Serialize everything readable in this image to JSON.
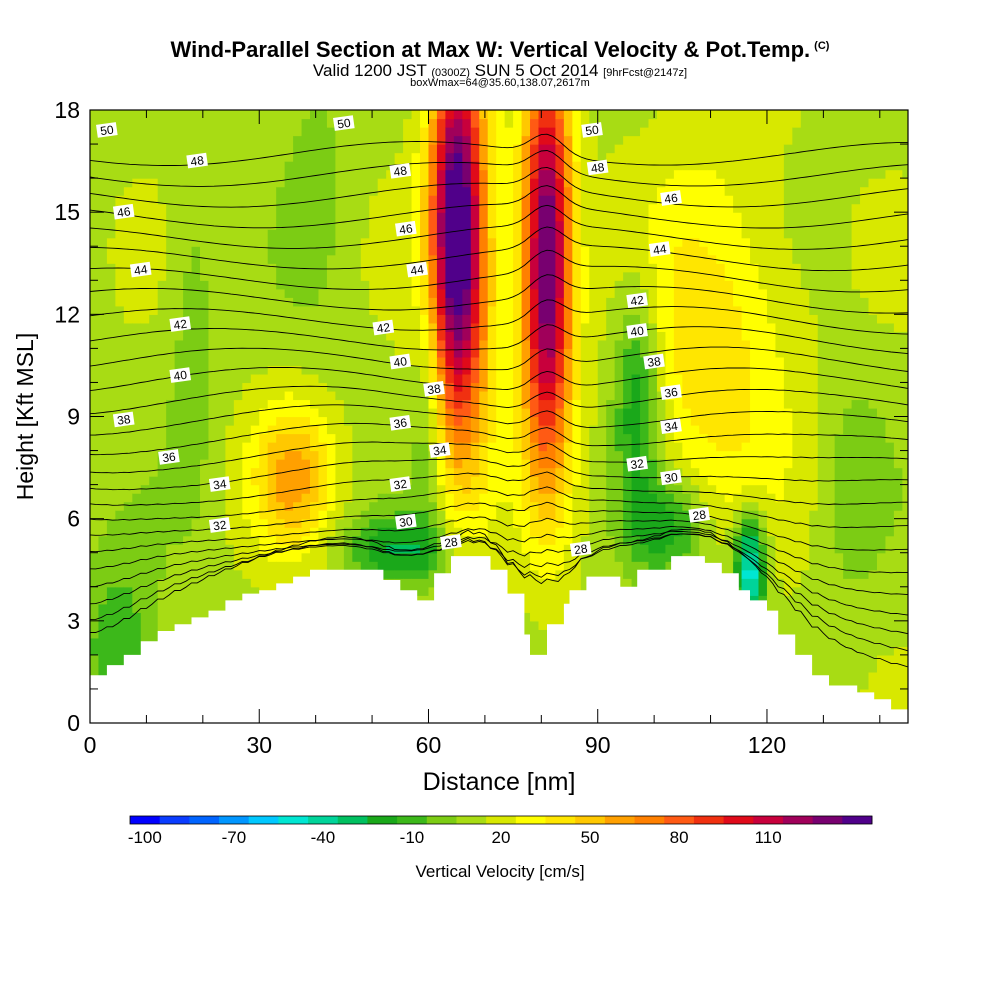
{
  "header": {
    "title": "Wind-Parallel Section at Max W: Vertical Velocity & Pot.Temp.",
    "title_tag": "(C)",
    "subtitle_a": "Valid 1200 JST",
    "subtitle_b": "(0300Z)",
    "subtitle_c": "SUN 5 Oct 2014",
    "subtitle_d": "[9hrFcst@2147z]",
    "info": "boxWmax=64@35.60,138.07,2617m"
  },
  "chart_data": {
    "type": "contour",
    "xlabel": "Distance [nm]",
    "ylabel": "Height [Kft MSL]",
    "xlim": [
      0,
      145
    ],
    "ylim": [
      0,
      18
    ],
    "x_ticks": [
      0,
      30,
      60,
      90,
      120
    ],
    "y_ticks": [
      0,
      3,
      6,
      9,
      12,
      15,
      18
    ],
    "terrain_kft": [
      [
        0,
        1.4
      ],
      [
        3,
        1.4
      ],
      [
        3,
        1.7
      ],
      [
        6,
        1.7
      ],
      [
        6,
        2.0
      ],
      [
        9,
        2.0
      ],
      [
        9,
        2.4
      ],
      [
        12,
        2.4
      ],
      [
        12,
        2.7
      ],
      [
        15,
        2.7
      ],
      [
        15,
        2.9
      ],
      [
        18,
        2.9
      ],
      [
        18,
        3.1
      ],
      [
        21,
        3.1
      ],
      [
        21,
        3.3
      ],
      [
        24,
        3.3
      ],
      [
        24,
        3.6
      ],
      [
        27,
        3.6
      ],
      [
        27,
        3.8
      ],
      [
        30,
        3.8
      ],
      [
        30,
        3.9
      ],
      [
        33,
        3.9
      ],
      [
        33,
        4.1
      ],
      [
        36,
        4.1
      ],
      [
        36,
        4.3
      ],
      [
        39,
        4.3
      ],
      [
        39,
        4.5
      ],
      [
        52,
        4.5
      ],
      [
        52,
        4.2
      ],
      [
        55,
        4.2
      ],
      [
        55,
        3.9
      ],
      [
        58,
        3.9
      ],
      [
        58,
        3.6
      ],
      [
        61,
        3.6
      ],
      [
        61,
        4.4
      ],
      [
        64,
        4.4
      ],
      [
        64,
        4.9
      ],
      [
        71,
        4.9
      ],
      [
        71,
        4.5
      ],
      [
        74,
        4.5
      ],
      [
        74,
        3.8
      ],
      [
        77,
        3.8
      ],
      [
        77,
        2.6
      ],
      [
        78,
        2.6
      ],
      [
        78,
        2.0
      ],
      [
        81,
        2.0
      ],
      [
        81,
        2.9
      ],
      [
        84,
        2.9
      ],
      [
        84,
        3.5
      ],
      [
        85,
        3.5
      ],
      [
        85,
        3.9
      ],
      [
        88,
        3.9
      ],
      [
        88,
        4.3
      ],
      [
        94,
        4.3
      ],
      [
        94,
        4.0
      ],
      [
        97,
        4.0
      ],
      [
        97,
        4.5
      ],
      [
        103,
        4.5
      ],
      [
        103,
        4.9
      ],
      [
        109,
        4.9
      ],
      [
        109,
        4.7
      ],
      [
        112,
        4.7
      ],
      [
        112,
        4.4
      ],
      [
        115,
        4.4
      ],
      [
        115,
        3.9
      ],
      [
        117,
        3.9
      ],
      [
        117,
        3.6
      ],
      [
        120,
        3.6
      ],
      [
        120,
        3.3
      ],
      [
        122,
        3.3
      ],
      [
        122,
        2.6
      ],
      [
        125,
        2.6
      ],
      [
        125,
        2.0
      ],
      [
        128,
        2.0
      ],
      [
        128,
        1.4
      ],
      [
        131,
        1.4
      ],
      [
        131,
        1.1
      ],
      [
        136,
        1.1
      ],
      [
        136,
        0.9
      ],
      [
        139,
        0.9
      ],
      [
        139,
        0.7
      ],
      [
        142,
        0.7
      ],
      [
        142,
        0.4
      ],
      [
        145,
        0.4
      ]
    ],
    "velocity_features_cm_s": [
      {
        "x": 65,
        "y": 15.0,
        "w": 110,
        "sx": 3.2,
        "sy": 3.8
      },
      {
        "x": 66,
        "y": 12.0,
        "w": 45,
        "sx": 4.5,
        "sy": 4.5
      },
      {
        "x": 81,
        "y": 15.0,
        "w": 100,
        "sx": 3.0,
        "sy": 3.6
      },
      {
        "x": 81,
        "y": 10.5,
        "w": 55,
        "sx": 3.2,
        "sy": 3.5
      },
      {
        "x": 36,
        "y": 7.2,
        "w": 45,
        "sx": 5.0,
        "sy": 1.5
      },
      {
        "x": 110,
        "y": 11.0,
        "w": 30,
        "sx": 10.0,
        "sy": 4.0
      },
      {
        "x": 97,
        "y": 9.5,
        "w": -40,
        "sx": 3.0,
        "sy": 2.5
      },
      {
        "x": 103,
        "y": 5.7,
        "w": -35,
        "sx": 5.0,
        "sy": 1.0
      },
      {
        "x": 117,
        "y": 4.5,
        "w": -70,
        "sx": 2.0,
        "sy": 1.2
      },
      {
        "x": 55,
        "y": 5.1,
        "w": -35,
        "sx": 7.0,
        "sy": 0.7
      },
      {
        "x": 60,
        "y": 9.0,
        "w": -20,
        "sx": 2.0,
        "sy": 3.0
      },
      {
        "x": 5,
        "y": 2.2,
        "w": -25,
        "sx": 5.0,
        "sy": 2.0
      },
      {
        "x": 18,
        "y": 11.5,
        "w": -12,
        "sx": 3.0,
        "sy": 4.0
      },
      {
        "x": 40,
        "y": 16.0,
        "w": -10,
        "sx": 4.0,
        "sy": 3.0
      },
      {
        "x": 135,
        "y": 7.0,
        "w": -12,
        "sx": 4.0,
        "sy": 2.5
      }
    ],
    "isentrope_levels_c": [
      26,
      27,
      28,
      29,
      30,
      31,
      32,
      33,
      34,
      35,
      36,
      37,
      38,
      39,
      40,
      41,
      42,
      43,
      44,
      45,
      46,
      47,
      48,
      49,
      50,
      51
    ],
    "isentrope_labels": [
      {
        "text": "50",
        "x": 3,
        "y": 17.4
      },
      {
        "text": "50",
        "x": 45,
        "y": 17.6
      },
      {
        "text": "50",
        "x": 89,
        "y": 17.4
      },
      {
        "text": "48",
        "x": 19,
        "y": 16.5
      },
      {
        "text": "48",
        "x": 55,
        "y": 16.2
      },
      {
        "text": "48",
        "x": 90,
        "y": 16.3
      },
      {
        "text": "46",
        "x": 6,
        "y": 15.0
      },
      {
        "text": "46",
        "x": 56,
        "y": 14.5
      },
      {
        "text": "46",
        "x": 103,
        "y": 15.4
      },
      {
        "text": "44",
        "x": 9,
        "y": 13.3
      },
      {
        "text": "44",
        "x": 58,
        "y": 13.3
      },
      {
        "text": "44",
        "x": 101,
        "y": 13.9
      },
      {
        "text": "42",
        "x": 16,
        "y": 11.7
      },
      {
        "text": "42",
        "x": 52,
        "y": 11.6
      },
      {
        "text": "42",
        "x": 97,
        "y": 12.4
      },
      {
        "text": "40",
        "x": 16,
        "y": 10.2
      },
      {
        "text": "40",
        "x": 55,
        "y": 10.6
      },
      {
        "text": "40",
        "x": 97,
        "y": 11.5
      },
      {
        "text": "38",
        "x": 6,
        "y": 8.9
      },
      {
        "text": "38",
        "x": 61,
        "y": 9.8
      },
      {
        "text": "38",
        "x": 100,
        "y": 10.6
      },
      {
        "text": "36",
        "x": 14,
        "y": 7.8
      },
      {
        "text": "36",
        "x": 55,
        "y": 8.8
      },
      {
        "text": "36",
        "x": 103,
        "y": 9.7
      },
      {
        "text": "34",
        "x": 23,
        "y": 7.0
      },
      {
        "text": "34",
        "x": 62,
        "y": 8.0
      },
      {
        "text": "34",
        "x": 103,
        "y": 8.7
      },
      {
        "text": "32",
        "x": 23,
        "y": 5.8
      },
      {
        "text": "32",
        "x": 55,
        "y": 7.0
      },
      {
        "text": "32",
        "x": 97,
        "y": 7.6
      },
      {
        "text": "30",
        "x": 56,
        "y": 5.9
      },
      {
        "text": "30",
        "x": 103,
        "y": 7.2
      },
      {
        "text": "28",
        "x": 64,
        "y": 5.3
      },
      {
        "text": "28",
        "x": 87,
        "y": 5.1
      },
      {
        "text": "28",
        "x": 108,
        "y": 6.1
      }
    ],
    "colorbar": {
      "label": "Vertical Velocity [cm/s]",
      "tick_labels": [
        "-100",
        "-70",
        "-40",
        "-10",
        "20",
        "50",
        "80",
        "110"
      ],
      "colors": [
        "#0000ff",
        "#0a3cff",
        "#0064ff",
        "#0096ff",
        "#00c8ff",
        "#00e6d2",
        "#00d49a",
        "#00c060",
        "#1aa81a",
        "#3cb81a",
        "#7ccc14",
        "#a8dc14",
        "#d8e800",
        "#ffff00",
        "#ffe600",
        "#ffc800",
        "#ffa000",
        "#ff8000",
        "#ff5a14",
        "#f03010",
        "#e00a1a",
        "#c8003c",
        "#a0005a",
        "#780070",
        "#50008a"
      ]
    }
  }
}
